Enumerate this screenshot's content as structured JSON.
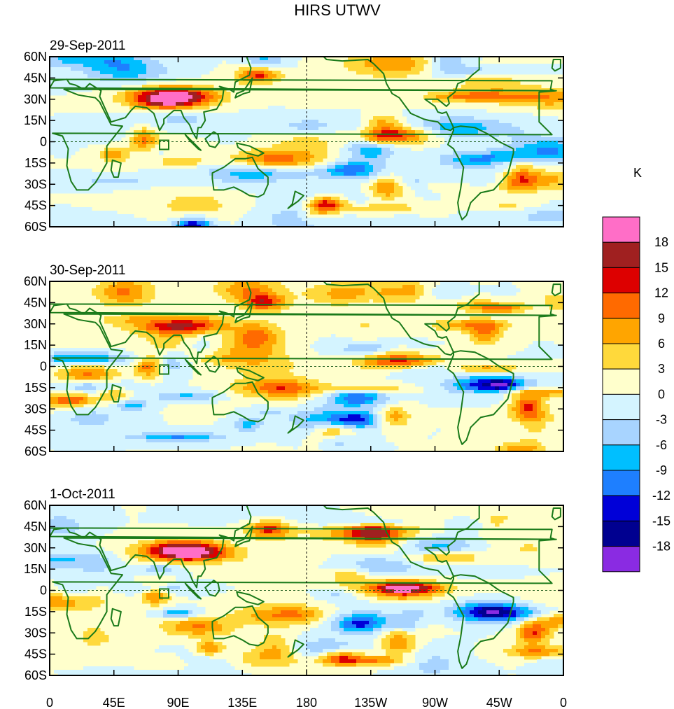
{
  "title": "HIRS UTWV",
  "panels": [
    {
      "date": "29-Sep-2011",
      "seed": 11
    },
    {
      "date": "30-Sep-2011",
      "seed": 23
    },
    {
      "date": "1-Oct-2011",
      "seed": 37
    }
  ],
  "lat_labels": [
    "60N",
    "45N",
    "30N",
    "15N",
    "0",
    "15S",
    "30S",
    "45S",
    "60S"
  ],
  "lon_labels": [
    "0",
    "45E",
    "90E",
    "135E",
    "180",
    "135W",
    "90W",
    "45W",
    "0"
  ],
  "colorbar": {
    "unit": "K",
    "levels": [
      "18",
      "15",
      "12",
      "9",
      "6",
      "3",
      "0",
      "-3",
      "-6",
      "-9",
      "-12",
      "-15",
      "-18"
    ],
    "colors": [
      "#ff6ec7",
      "#a02020",
      "#dd0000",
      "#ff6a00",
      "#ffa500",
      "#ffd93b",
      "#ffffcc",
      "#d4f4ff",
      "#a8d4ff",
      "#00bfff",
      "#1e7fff",
      "#0000d8",
      "#000090",
      "#8a2be2"
    ]
  },
  "map_colors": {
    "coast": "#1a7a1a",
    "lines": "#000000",
    "grid": "#000000"
  }
}
